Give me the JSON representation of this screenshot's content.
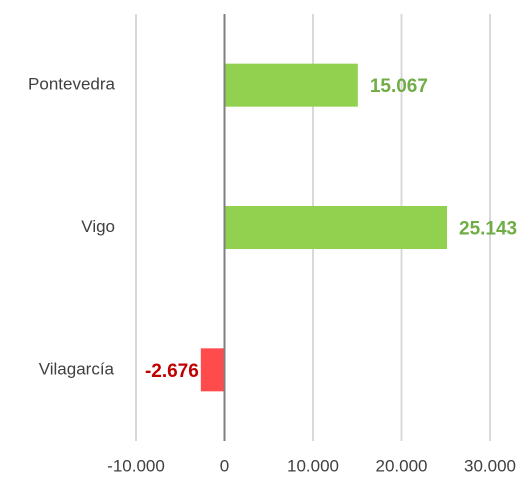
{
  "chart_data": {
    "type": "hbar",
    "categories": [
      "Pontevedra",
      "Vigo",
      "Vilagarcía"
    ],
    "values": [
      15067,
      25143,
      -2676
    ],
    "value_labels": [
      "15.067",
      "25.143",
      "-2.676"
    ],
    "colors": [
      "#92d050",
      "#92d050",
      "#ff4b4b"
    ],
    "label_colors": [
      "#70ad47",
      "#70ad47",
      "#c00000"
    ],
    "xlim": [
      -10000,
      30000
    ],
    "xticks": [
      {
        "value": -10000,
        "label": "-10.000"
      },
      0,
      {
        "value": 10000,
        "label": "10.000"
      },
      {
        "value": 20000,
        "label": "20.000"
      },
      {
        "value": 30000,
        "label": "30.000"
      }
    ],
    "grid": true
  }
}
